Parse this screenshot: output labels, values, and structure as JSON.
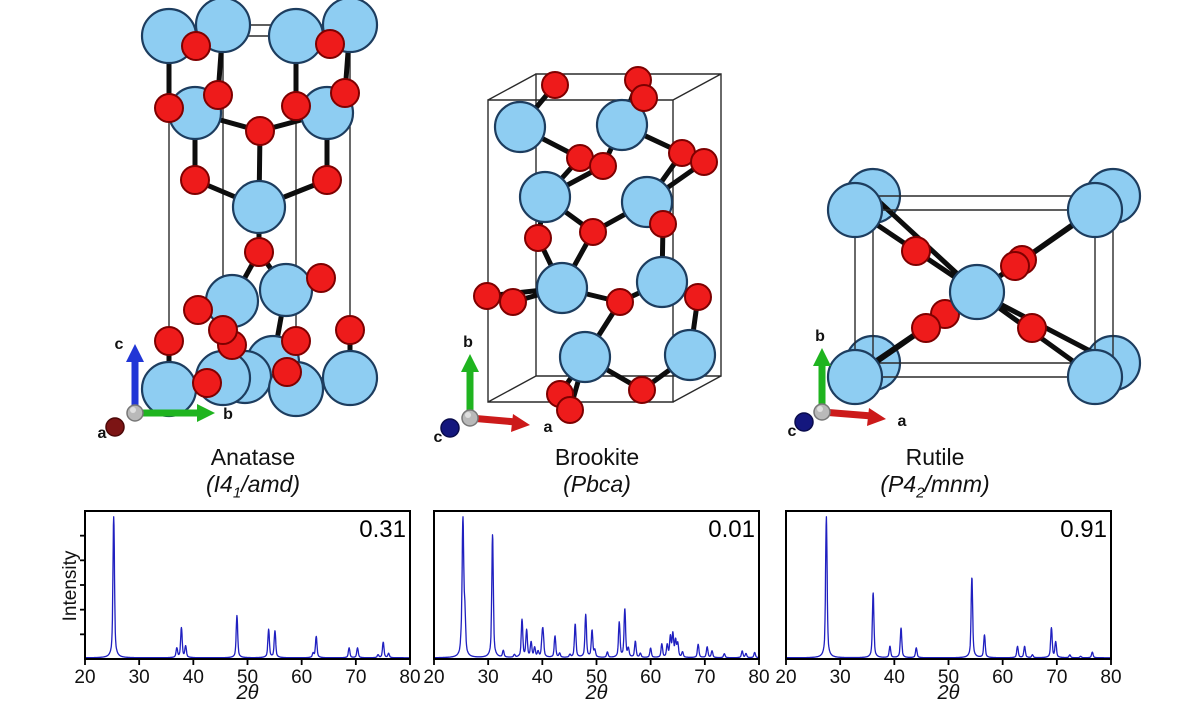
{
  "colors": {
    "background": "#FFFFFF",
    "ti_atom": "#8ECDF2",
    "ti_outline": "#1D3D5F",
    "o_atom": "#EE1B1B",
    "o_outline": "#7E0000",
    "bond": "#0D0D0D",
    "cell_edge": "#2A2A2A",
    "plot_line": "#2020C0",
    "axis_green": "#1FB41F",
    "axis_blue": "#2136D6",
    "axis_red": "#CC1A1A",
    "sphere_dark_red": "#7C1414",
    "sphere_navy": "#14177E",
    "origin_sphere": "#B9B9B9"
  },
  "structures": [
    {
      "name": "Anatase",
      "space_group": {
        "open": "(",
        "base": "I4",
        "sub": "1",
        "rest": "/amd)"
      },
      "axes": {
        "up": "c",
        "right": "b",
        "out": "a"
      }
    },
    {
      "name": "Brookite",
      "space_group": {
        "open": "(",
        "base": "Pbca",
        "sub": "",
        "rest": ")"
      },
      "axes": {
        "up": "b",
        "right": "a",
        "out": "c"
      }
    },
    {
      "name": "Rutile",
      "space_group": {
        "open": "(",
        "base": "P4",
        "sub": "2",
        "rest": "/mnm)"
      },
      "axes": {
        "up": "b",
        "right": "a",
        "out": "c"
      }
    }
  ],
  "chart_data": [
    {
      "type": "line",
      "subject": "Anatase XRD pattern",
      "xlabel": "2θ",
      "ylabel": "Intensity",
      "xlim": [
        20,
        80
      ],
      "x_ticks": [
        "20",
        "30",
        "40",
        "50",
        "60",
        "70",
        "80"
      ],
      "y_ticks": 5,
      "grid": false,
      "annotation": "0.31",
      "line_color": "#2020C0",
      "peaks_format": [
        "two_theta_deg",
        "relative_intensity"
      ],
      "peaks": [
        [
          25.3,
          1.0
        ],
        [
          36.95,
          0.065
        ],
        [
          37.8,
          0.21
        ],
        [
          38.58,
          0.08
        ],
        [
          48.05,
          0.3
        ],
        [
          53.9,
          0.2
        ],
        [
          55.07,
          0.19
        ],
        [
          62.12,
          0.03
        ],
        [
          62.69,
          0.15
        ],
        [
          68.76,
          0.07
        ],
        [
          70.31,
          0.07
        ],
        [
          74.1,
          0.02
        ],
        [
          75.06,
          0.11
        ],
        [
          76.05,
          0.03
        ]
      ]
    },
    {
      "type": "line",
      "subject": "Brookite XRD pattern",
      "xlabel": "2θ",
      "ylabel": "",
      "xlim": [
        20,
        80
      ],
      "x_ticks": [
        "20",
        "30",
        "40",
        "50",
        "60",
        "70",
        "80"
      ],
      "y_ticks": 0,
      "grid": false,
      "annotation": "0.01",
      "line_color": "#2020C0",
      "peaks_format": [
        "two_theta_deg",
        "relative_intensity"
      ],
      "peaks": [
        [
          25.05,
          0.08
        ],
        [
          25.34,
          1.0
        ],
        [
          25.69,
          0.3
        ],
        [
          30.81,
          0.92
        ],
        [
          32.79,
          0.05
        ],
        [
          34.84,
          0.02
        ],
        [
          36.25,
          0.28
        ],
        [
          37.1,
          0.2
        ],
        [
          37.93,
          0.11
        ],
        [
          38.58,
          0.07
        ],
        [
          39.21,
          0.04
        ],
        [
          39.97,
          0.12
        ],
        [
          40.15,
          0.15
        ],
        [
          42.34,
          0.16
        ],
        [
          43.2,
          0.03
        ],
        [
          45.1,
          0.02
        ],
        [
          46.07,
          0.25
        ],
        [
          48.01,
          0.32
        ],
        [
          49.18,
          0.2
        ],
        [
          49.69,
          0.05
        ],
        [
          52.01,
          0.04
        ],
        [
          54.2,
          0.26
        ],
        [
          55.23,
          0.36
        ],
        [
          55.88,
          0.06
        ],
        [
          57.17,
          0.12
        ],
        [
          58.1,
          0.03
        ],
        [
          59.99,
          0.07
        ],
        [
          62.06,
          0.1
        ],
        [
          63.06,
          0.09
        ],
        [
          63.64,
          0.15
        ],
        [
          64.1,
          0.17
        ],
        [
          64.6,
          0.12
        ],
        [
          65.0,
          0.1
        ],
        [
          65.88,
          0.04
        ],
        [
          68.77,
          0.1
        ],
        [
          70.43,
          0.08
        ],
        [
          71.33,
          0.05
        ],
        [
          73.6,
          0.03
        ],
        [
          76.9,
          0.05
        ],
        [
          77.6,
          0.03
        ],
        [
          79.2,
          0.04
        ]
      ]
    },
    {
      "type": "line",
      "subject": "Rutile XRD pattern",
      "xlabel": "2θ",
      "ylabel": "",
      "xlim": [
        20,
        80
      ],
      "x_ticks": [
        "20",
        "30",
        "40",
        "50",
        "60",
        "70",
        "80"
      ],
      "y_ticks": 0,
      "grid": false,
      "annotation": "0.91",
      "line_color": "#2020C0",
      "peaks_format": [
        "two_theta_deg",
        "relative_intensity"
      ],
      "peaks": [
        [
          27.45,
          1.0
        ],
        [
          36.09,
          0.46
        ],
        [
          39.19,
          0.08
        ],
        [
          41.24,
          0.21
        ],
        [
          44.05,
          0.07
        ],
        [
          54.32,
          0.57
        ],
        [
          56.64,
          0.16
        ],
        [
          62.74,
          0.08
        ],
        [
          64.05,
          0.08
        ],
        [
          65.5,
          0.02
        ],
        [
          69.0,
          0.21
        ],
        [
          69.79,
          0.11
        ],
        [
          72.4,
          0.02
        ],
        [
          74.4,
          0.01
        ],
        [
          76.55,
          0.04
        ]
      ]
    }
  ]
}
